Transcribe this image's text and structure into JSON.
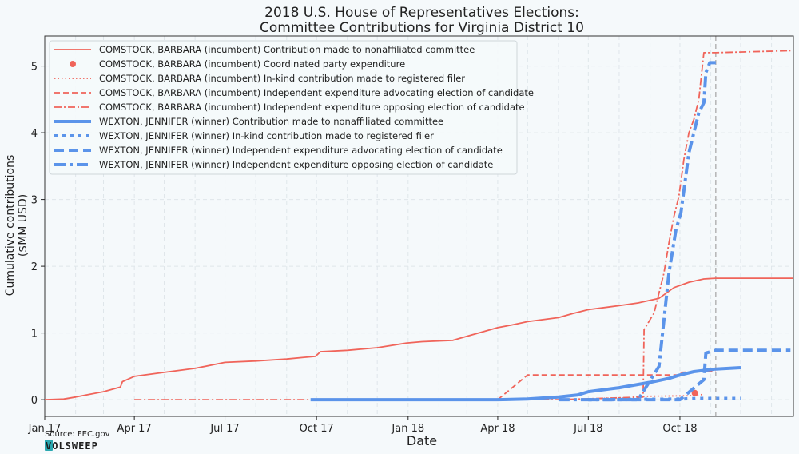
{
  "colors": {
    "comstock": "#f0645a",
    "wexton": "#5b94ea",
    "election_line": "#b5b5b5",
    "grid": "#dfe6ea",
    "logo_bg": "#2aa8b0"
  },
  "chart_data": {
    "type": "line",
    "title": [
      "2018 U.S. House of Representatives Elections:",
      "Committee Contributions for Virginia District 10"
    ],
    "xlabel": "Date",
    "ylabel": [
      "Cumulative contributions",
      "($MM USD)"
    ],
    "ylim": [
      -0.25,
      5.45
    ],
    "xlim": [
      "2017-01-01",
      "2019-01-23"
    ],
    "grid": true,
    "legend_position": "top-left",
    "x_ticks": [
      {
        "date": "2017-01-01",
        "label": "Jan 17"
      },
      {
        "date": "2017-04-01",
        "label": "Apr 17"
      },
      {
        "date": "2017-07-01",
        "label": "Jul 17"
      },
      {
        "date": "2017-10-01",
        "label": "Oct 17"
      },
      {
        "date": "2018-01-01",
        "label": "Jan 18"
      },
      {
        "date": "2018-04-01",
        "label": "Apr 18"
      },
      {
        "date": "2018-07-01",
        "label": "Jul 18"
      },
      {
        "date": "2018-10-01",
        "label": "Oct 18"
      }
    ],
    "y_ticks": [
      0,
      1,
      2,
      3,
      4,
      5
    ],
    "election_day": "2018-11-06",
    "series": [
      {
        "name": "COMSTOCK, BARBARA (incumbent) Contribution made to nonaffiliated committee",
        "candidate": "comstock",
        "style": "solid",
        "points": [
          [
            "2017-01-01",
            0
          ],
          [
            "2017-01-20",
            0.01
          ],
          [
            "2017-02-01",
            0.04
          ],
          [
            "2017-02-15",
            0.08
          ],
          [
            "2017-03-01",
            0.12
          ],
          [
            "2017-03-18",
            0.19
          ],
          [
            "2017-03-20",
            0.27
          ],
          [
            "2017-04-01",
            0.35
          ],
          [
            "2017-05-01",
            0.41
          ],
          [
            "2017-06-01",
            0.47
          ],
          [
            "2017-07-01",
            0.56
          ],
          [
            "2017-08-01",
            0.58
          ],
          [
            "2017-09-01",
            0.61
          ],
          [
            "2017-09-30",
            0.65
          ],
          [
            "2017-10-05",
            0.72
          ],
          [
            "2017-11-01",
            0.74
          ],
          [
            "2017-12-01",
            0.78
          ],
          [
            "2017-12-31",
            0.85
          ],
          [
            "2018-01-15",
            0.87
          ],
          [
            "2018-02-15",
            0.89
          ],
          [
            "2018-03-01",
            0.95
          ],
          [
            "2018-04-01",
            1.08
          ],
          [
            "2018-04-15",
            1.12
          ],
          [
            "2018-05-01",
            1.17
          ],
          [
            "2018-06-01",
            1.23
          ],
          [
            "2018-06-15",
            1.29
          ],
          [
            "2018-07-01",
            1.35
          ],
          [
            "2018-08-01",
            1.41
          ],
          [
            "2018-08-20",
            1.45
          ],
          [
            "2018-09-10",
            1.52
          ],
          [
            "2018-09-25",
            1.68
          ],
          [
            "2018-10-10",
            1.76
          ],
          [
            "2018-10-25",
            1.81
          ],
          [
            "2018-11-06",
            1.82
          ],
          [
            "2019-01-23",
            1.82
          ]
        ]
      },
      {
        "name": "COMSTOCK, BARBARA (incumbent) Coordinated party expenditure",
        "candidate": "comstock",
        "style": "dot-marker",
        "points": [
          [
            "2018-10-16",
            0.1
          ]
        ]
      },
      {
        "name": "COMSTOCK, BARBARA (incumbent) In-kind contribution made to registered filer",
        "candidate": "comstock",
        "style": "dotted",
        "points": [
          [
            "2018-06-25",
            0
          ],
          [
            "2018-07-15",
            0.02
          ],
          [
            "2018-08-10",
            0.03
          ],
          [
            "2018-08-25",
            0.05
          ],
          [
            "2018-10-15",
            0.06
          ],
          [
            "2018-10-25",
            0.08
          ]
        ]
      },
      {
        "name": "COMSTOCK, BARBARA (incumbent) Independent expenditure advocating election of candidate",
        "candidate": "comstock",
        "style": "dashed",
        "points": [
          [
            "2018-04-01",
            0
          ],
          [
            "2018-05-01",
            0.37
          ],
          [
            "2018-09-30",
            0.37
          ],
          [
            "2018-10-01",
            0.41
          ],
          [
            "2018-11-06",
            0.43
          ]
        ]
      },
      {
        "name": "COMSTOCK, BARBARA (incumbent) Independent expenditure opposing election of candidate",
        "candidate": "comstock",
        "style": "dashdot",
        "points": [
          [
            "2017-04-01",
            0
          ],
          [
            "2018-06-01",
            0
          ],
          [
            "2018-08-25",
            0.04
          ],
          [
            "2018-08-26",
            1.05
          ],
          [
            "2018-09-05",
            1.3
          ],
          [
            "2018-09-10",
            1.6
          ],
          [
            "2018-09-15",
            1.9
          ],
          [
            "2018-09-20",
            2.35
          ],
          [
            "2018-09-25",
            2.75
          ],
          [
            "2018-09-30",
            3.05
          ],
          [
            "2018-10-05",
            3.6
          ],
          [
            "2018-10-10",
            4.0
          ],
          [
            "2018-10-15",
            4.2
          ],
          [
            "2018-10-20",
            4.5
          ],
          [
            "2018-10-25",
            5.2
          ],
          [
            "2018-11-06",
            5.2
          ],
          [
            "2019-01-20",
            5.23
          ]
        ]
      },
      {
        "name": "WEXTON, JENNIFER (winner) Contribution made to nonaffiliated committee",
        "candidate": "wexton",
        "style": "solid",
        "points": [
          [
            "2017-09-25",
            0
          ],
          [
            "2018-04-01",
            0
          ],
          [
            "2018-05-01",
            0.01
          ],
          [
            "2018-06-01",
            0.04
          ],
          [
            "2018-06-20",
            0.07
          ],
          [
            "2018-07-01",
            0.12
          ],
          [
            "2018-08-01",
            0.18
          ],
          [
            "2018-09-01",
            0.26
          ],
          [
            "2018-09-20",
            0.32
          ],
          [
            "2018-10-01",
            0.37
          ],
          [
            "2018-10-15",
            0.42
          ],
          [
            "2018-11-06",
            0.46
          ],
          [
            "2018-12-01",
            0.48
          ]
        ]
      },
      {
        "name": "WEXTON, JENNIFER (winner) In-kind contribution made to registered filer",
        "candidate": "wexton",
        "style": "dotted",
        "points": [
          [
            "2018-07-01",
            0
          ],
          [
            "2018-10-01",
            0.01
          ],
          [
            "2018-10-20",
            0.02
          ],
          [
            "2018-12-01",
            0.02
          ]
        ]
      },
      {
        "name": "WEXTON, JENNIFER (winner) Independent expenditure advocating election of candidate",
        "candidate": "wexton",
        "style": "dashed",
        "points": [
          [
            "2018-07-01",
            0
          ],
          [
            "2018-10-01",
            0
          ],
          [
            "2018-10-25",
            0.3
          ],
          [
            "2018-10-27",
            0.7
          ],
          [
            "2018-11-06",
            0.74
          ],
          [
            "2019-01-20",
            0.74
          ]
        ]
      },
      {
        "name": "WEXTON, JENNIFER (winner) Independent expenditure opposing election of candidate",
        "candidate": "wexton",
        "style": "dashdot",
        "points": [
          [
            "2018-06-01",
            0
          ],
          [
            "2018-08-20",
            0
          ],
          [
            "2018-09-10",
            0.5
          ],
          [
            "2018-09-15",
            1.2
          ],
          [
            "2018-09-20",
            1.9
          ],
          [
            "2018-09-27",
            2.55
          ],
          [
            "2018-10-02",
            2.8
          ],
          [
            "2018-10-10",
            3.7
          ],
          [
            "2018-10-20",
            4.3
          ],
          [
            "2018-10-25",
            4.45
          ],
          [
            "2018-10-27",
            4.9
          ],
          [
            "2018-10-31",
            5.05
          ],
          [
            "2018-11-06",
            5.05
          ]
        ]
      }
    ]
  },
  "source_text": "Source: FEC.gov",
  "logo_text": "VOLSWEEP"
}
